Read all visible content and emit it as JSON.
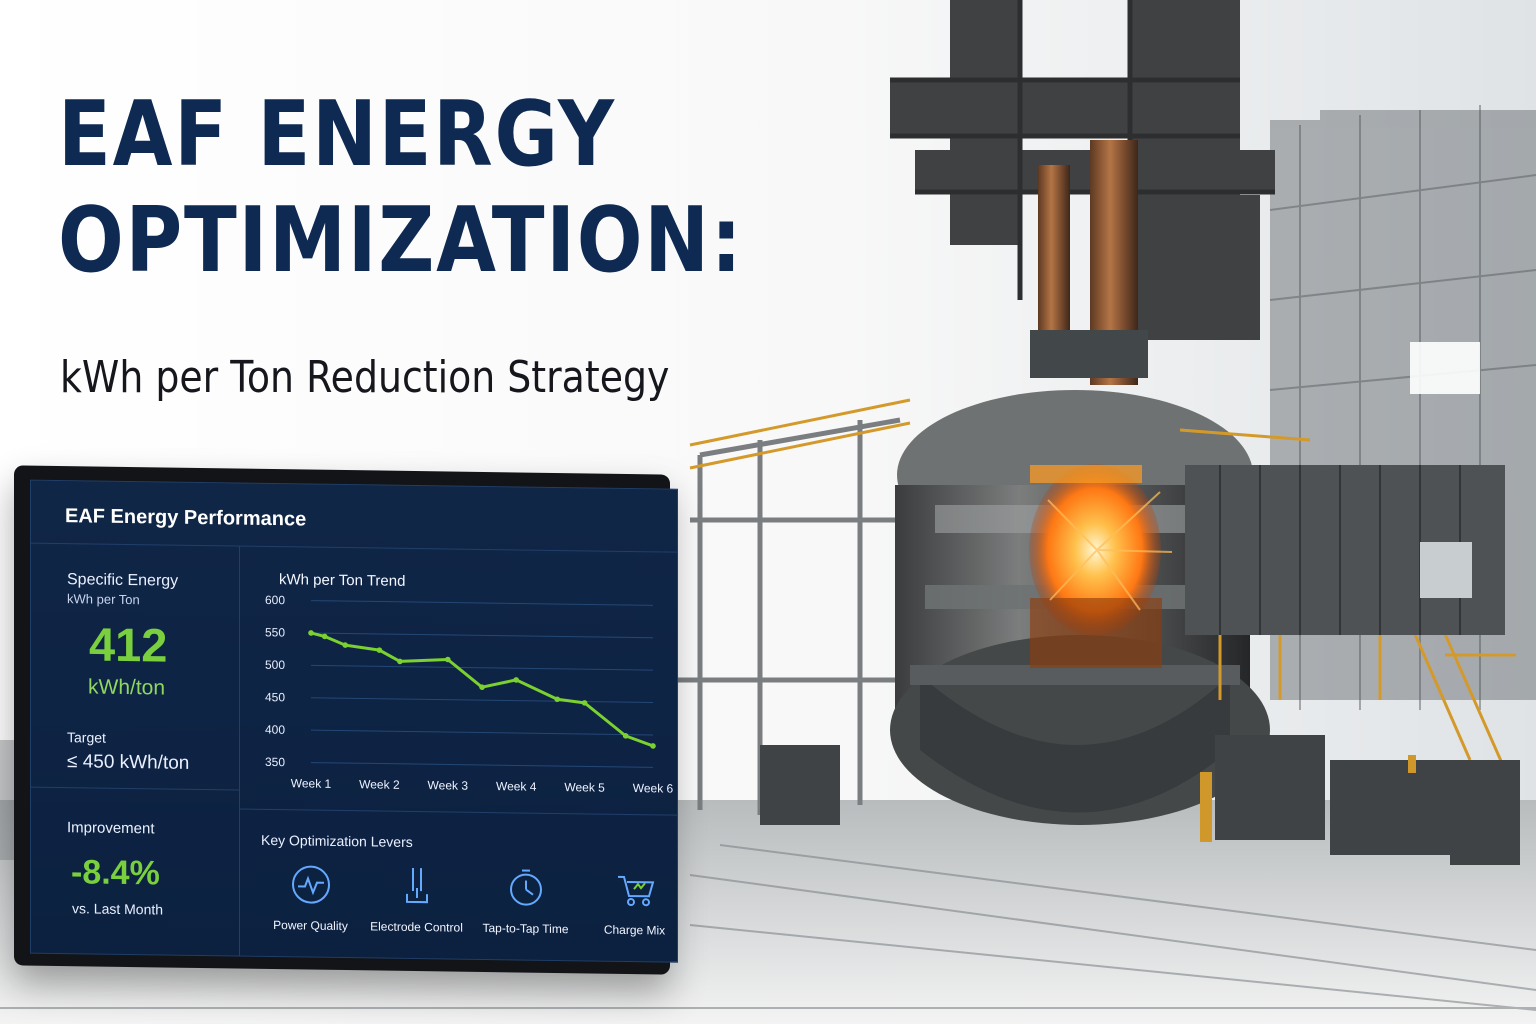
{
  "hero": {
    "title_line_1": "EAF ENERGY",
    "title_line_2": "OPTIMIZATION:",
    "subtitle": "kWh per Ton Reduction Strategy"
  },
  "dashboard": {
    "title": "EAF Energy Performance",
    "specific_energy": {
      "label": "Specific Energy",
      "unit_label": "kWh per Ton",
      "value": "412",
      "unit": "kWh/ton"
    },
    "target": {
      "label": "Target",
      "value": "≤ 450 kWh/ton"
    },
    "improvement": {
      "label": "Improvement",
      "value": "-8.4%",
      "comparison": "vs. Last Month"
    },
    "levers_title": "Key Optimization Levers",
    "levers": [
      {
        "label": "Power Quality",
        "icon": "power-quality-icon"
      },
      {
        "label": "Electrode Control",
        "icon": "electrode-control-icon"
      },
      {
        "label": "Tap-to-Tap Time",
        "icon": "timer-icon"
      },
      {
        "label": "Charge Mix",
        "icon": "cart-icon"
      }
    ]
  },
  "chart_data": {
    "type": "line",
    "title": "kWh per Ton Trend",
    "categories": [
      "Week 1",
      "Week 2",
      "Week 3",
      "Week 4",
      "Week 5",
      "Week 6"
    ],
    "x": [
      1,
      1.2,
      1.5,
      2,
      2.3,
      3,
      3.5,
      4,
      4.6,
      5,
      5.6,
      6
    ],
    "y": [
      550,
      545,
      532,
      525,
      508,
      512,
      470,
      482,
      453,
      448,
      398,
      383
    ],
    "yticks": [
      600,
      550,
      500,
      450,
      400,
      350
    ],
    "ylim": [
      350,
      600
    ],
    "xlim": [
      1,
      6
    ],
    "series_color": "#7bd12f",
    "grid": true
  },
  "colors": {
    "headline": "#0f2a52",
    "screen_bg": "#102647",
    "metric_green": "#79cf3e",
    "accent_blue": "#5fa8ff",
    "fire_orange": "#ff9b20"
  }
}
